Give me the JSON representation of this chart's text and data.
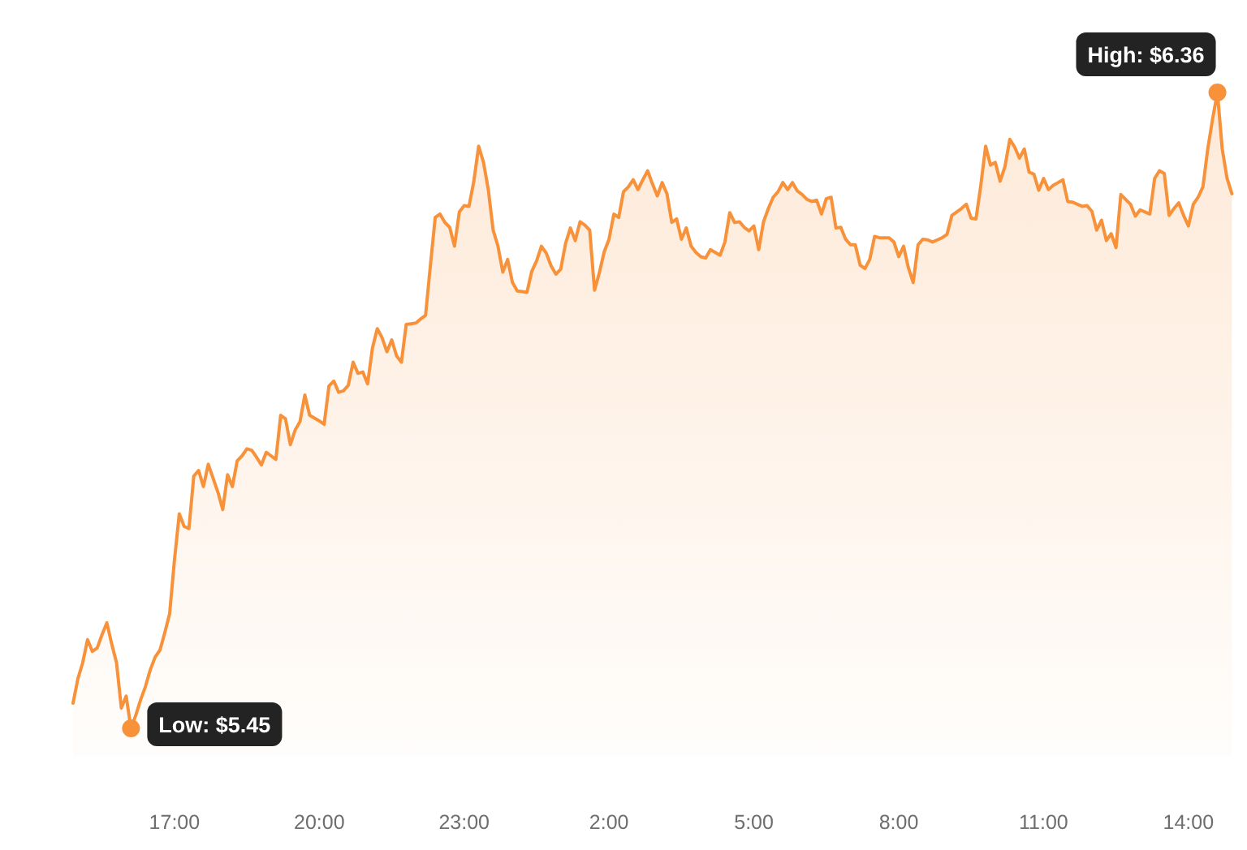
{
  "chart_data": {
    "type": "area",
    "color": "#f7923a",
    "categories": [
      null,
      null,
      null,
      null,
      null,
      null,
      null,
      null,
      null,
      null,
      null,
      null,
      null,
      null,
      null,
      null,
      null,
      null,
      null,
      null,
      null,
      "17:00",
      null,
      null,
      null,
      null,
      null,
      null,
      null,
      null,
      null,
      null,
      null,
      null,
      null,
      null,
      null,
      null,
      null,
      null,
      null,
      null,
      null,
      null,
      null,
      null,
      null,
      null,
      null,
      null,
      null,
      "20:00",
      null,
      null,
      null,
      null,
      null,
      null,
      null,
      null,
      null,
      null,
      null,
      null,
      null,
      null,
      null,
      null,
      null,
      null,
      null,
      null,
      null,
      null,
      null,
      null,
      null,
      null,
      null,
      null,
      null,
      "23:00",
      null,
      null,
      null,
      null,
      null,
      null,
      null,
      null,
      null,
      null,
      null,
      null,
      null,
      null,
      null,
      null,
      null,
      null,
      null,
      null,
      null,
      null,
      null,
      null,
      null,
      null,
      null,
      null,
      null,
      "2:00",
      null,
      null,
      null,
      null,
      null,
      null,
      null,
      null,
      null,
      null,
      null,
      null,
      null,
      null,
      null,
      null,
      null,
      null,
      null,
      null,
      null,
      null,
      null,
      null,
      null,
      null,
      null,
      null,
      null,
      "5:00",
      null,
      null,
      null,
      null,
      null,
      null,
      null,
      null,
      null,
      null,
      null,
      null,
      null,
      null,
      null,
      null,
      null,
      null,
      null,
      null,
      null,
      null,
      null,
      null,
      null,
      null,
      null,
      null,
      null,
      "8:00",
      null,
      null,
      null,
      null,
      null,
      null,
      null,
      null,
      null,
      null,
      null,
      null,
      null,
      null,
      null,
      null,
      null,
      null,
      null,
      null,
      null,
      null,
      null,
      null,
      null,
      null,
      null,
      null,
      null,
      "11:00",
      null,
      null,
      null,
      null,
      null,
      null,
      null,
      null,
      null,
      null,
      null,
      null,
      null,
      null,
      null,
      null,
      null,
      null,
      null,
      null,
      null,
      null,
      null,
      null,
      null,
      null,
      null,
      null,
      null,
      "14:00",
      null,
      null,
      null,
      null,
      null,
      null,
      null,
      null,
      null
    ],
    "values": [
      5.486,
      5.521,
      5.544,
      5.577,
      5.56,
      5.565,
      5.584,
      5.601,
      5.571,
      5.544,
      5.479,
      5.496,
      5.45,
      5.469,
      5.491,
      5.51,
      5.534,
      5.552,
      5.562,
      5.587,
      5.614,
      5.691,
      5.757,
      5.739,
      5.736,
      5.811,
      5.819,
      5.796,
      5.828,
      5.808,
      5.788,
      5.763,
      5.813,
      5.796,
      5.833,
      5.84,
      5.85,
      5.848,
      5.838,
      5.827,
      5.845,
      5.84,
      5.835,
      5.898,
      5.893,
      5.856,
      5.877,
      5.889,
      5.927,
      5.898,
      5.894,
      5.89,
      5.885,
      5.94,
      5.947,
      5.931,
      5.933,
      5.941,
      5.974,
      5.958,
      5.96,
      5.943,
      5.994,
      6.022,
      6.009,
      5.989,
      6.006,
      5.983,
      5.974,
      6.028,
      6.029,
      6.03,
      6.036,
      6.041,
      6.112,
      6.181,
      6.186,
      6.174,
      6.167,
      6.14,
      6.189,
      6.198,
      6.197,
      6.233,
      6.283,
      6.26,
      6.221,
      6.163,
      6.14,
      6.103,
      6.121,
      6.088,
      6.076,
      6.075,
      6.074,
      6.104,
      6.119,
      6.14,
      6.13,
      6.112,
      6.1,
      6.107,
      6.144,
      6.166,
      6.148,
      6.175,
      6.17,
      6.163,
      6.077,
      6.102,
      6.132,
      6.15,
      6.186,
      6.181,
      6.218,
      6.225,
      6.235,
      6.221,
      6.235,
      6.248,
      6.229,
      6.212,
      6.231,
      6.215,
      6.174,
      6.179,
      6.15,
      6.166,
      6.14,
      6.131,
      6.125,
      6.123,
      6.135,
      6.131,
      6.127,
      6.146,
      6.188,
      6.174,
      6.175,
      6.167,
      6.162,
      6.169,
      6.135,
      6.175,
      6.194,
      6.21,
      6.218,
      6.231,
      6.221,
      6.231,
      6.219,
      6.214,
      6.207,
      6.204,
      6.206,
      6.186,
      6.208,
      6.21,
      6.166,
      6.167,
      6.15,
      6.142,
      6.142,
      6.113,
      6.108,
      6.121,
      6.154,
      6.152,
      6.152,
      6.152,
      6.146,
      6.125,
      6.14,
      6.109,
      6.088,
      6.142,
      6.15,
      6.149,
      6.146,
      6.149,
      6.152,
      6.157,
      6.184,
      6.189,
      6.194,
      6.2,
      6.18,
      6.179,
      6.227,
      6.283,
      6.256,
      6.26,
      6.233,
      6.254,
      6.293,
      6.282,
      6.266,
      6.279,
      6.246,
      6.243,
      6.22,
      6.237,
      6.221,
      6.227,
      6.231,
      6.235,
      6.204,
      6.203,
      6.2,
      6.197,
      6.198,
      6.19,
      6.163,
      6.177,
      6.148,
      6.158,
      6.138,
      6.214,
      6.207,
      6.2,
      6.183,
      6.192,
      6.189,
      6.186,
      6.237,
      6.248,
      6.244,
      6.184,
      6.194,
      6.202,
      6.184,
      6.169,
      6.2,
      6.21,
      6.225,
      6.279,
      6.322,
      6.36,
      6.279,
      6.237,
      6.215
    ],
    "value_labels": [
      null,
      null,
      null,
      null,
      null,
      null,
      null,
      null,
      null,
      null,
      null,
      null,
      "Low: $5.45",
      null,
      null,
      null,
      null,
      null,
      null,
      null,
      null,
      null,
      null,
      null,
      null,
      null,
      null,
      null,
      null,
      null,
      null,
      null,
      null,
      null,
      null,
      null,
      null,
      null,
      null,
      null,
      null,
      null,
      null,
      null,
      null,
      null,
      null,
      null,
      null,
      null,
      null,
      null,
      null,
      null,
      null,
      null,
      null,
      null,
      null,
      null,
      null,
      null,
      null,
      null,
      null,
      null,
      null,
      null,
      null,
      null,
      null,
      null,
      null,
      null,
      null,
      null,
      null,
      null,
      null,
      null,
      null,
      null,
      null,
      null,
      null,
      null,
      null,
      null,
      null,
      null,
      null,
      null,
      null,
      null,
      null,
      null,
      null,
      null,
      null,
      null,
      null,
      null,
      null,
      null,
      null,
      null,
      null,
      null,
      null,
      null,
      null,
      null,
      null,
      null,
      null,
      null,
      null,
      null,
      null,
      null,
      null,
      null,
      null,
      null,
      null,
      null,
      null,
      null,
      null,
      null,
      null,
      null,
      null,
      null,
      null,
      null,
      null,
      null,
      null,
      null,
      null,
      null,
      null,
      null,
      null,
      null,
      null,
      null,
      null,
      null,
      null,
      null,
      null,
      null,
      null,
      null,
      null,
      null,
      null,
      null,
      null,
      null,
      null,
      null,
      null,
      null,
      null,
      null,
      null,
      null,
      null,
      null,
      null,
      null,
      null,
      null,
      null,
      null,
      null,
      null,
      null,
      null,
      null,
      null,
      null,
      null,
      null,
      null,
      null,
      null,
      null,
      null,
      null,
      null,
      null,
      null,
      null,
      null,
      null,
      null,
      null,
      null,
      null,
      null,
      null,
      null,
      null,
      null,
      null,
      null,
      null,
      null,
      null,
      null,
      null,
      null,
      null,
      null,
      null,
      null,
      null,
      null,
      null,
      null,
      null,
      null,
      null,
      null,
      null,
      null,
      null,
      null,
      null,
      null,
      null,
      null,
      null,
      "High: $6.36",
      null,
      null,
      null
    ]
  }
}
